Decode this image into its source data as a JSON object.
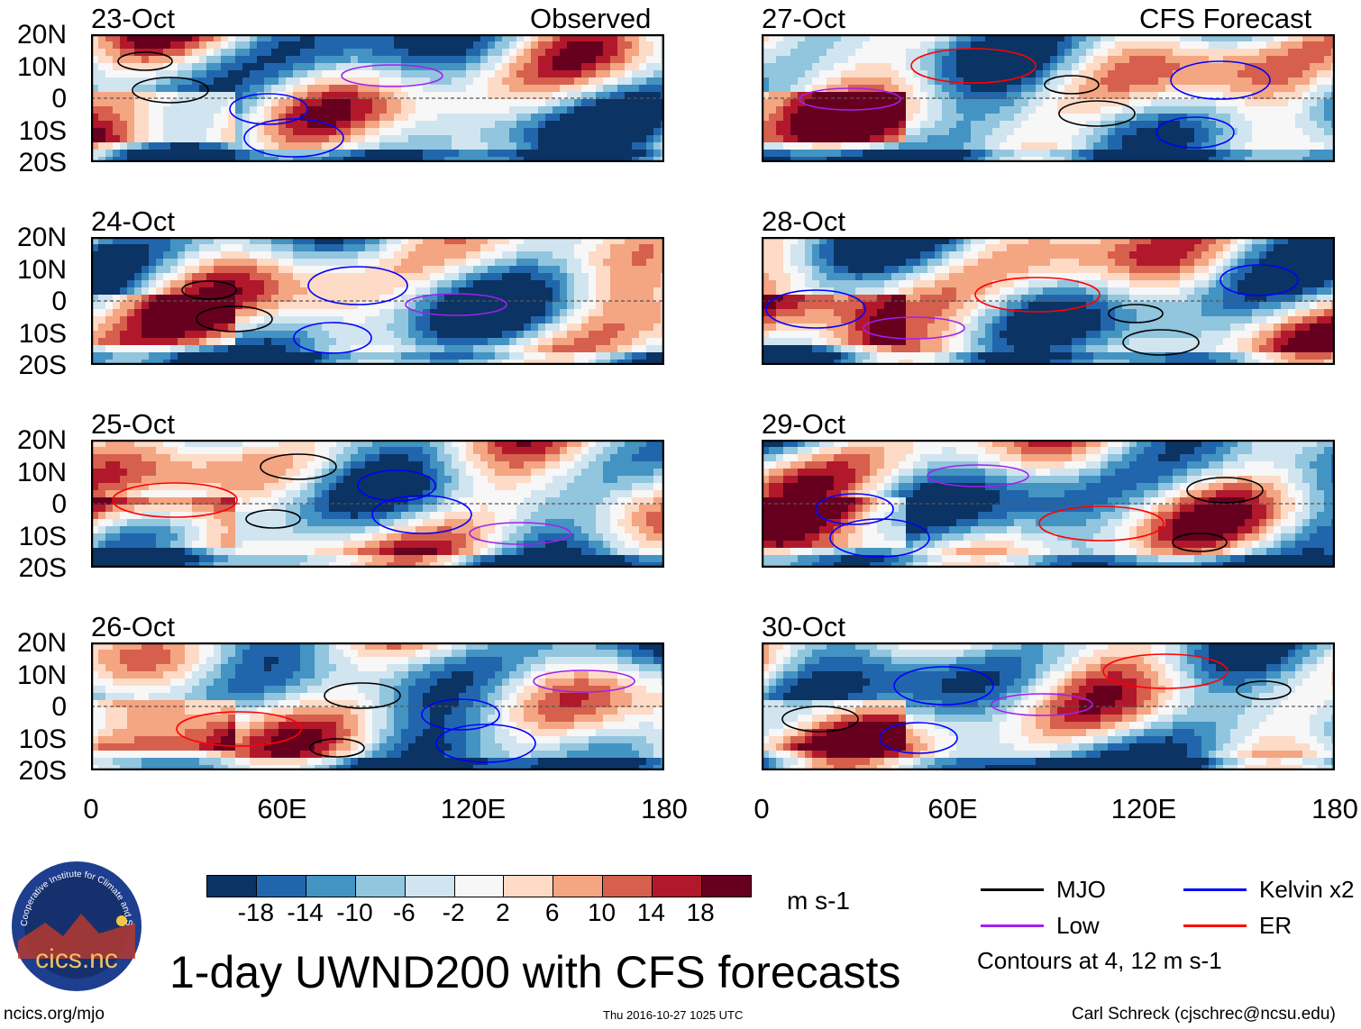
{
  "title": "1-day UWND200 with CFS forecasts",
  "columns": {
    "left_label": "Observed",
    "right_label": "CFS Forecast"
  },
  "footer": {
    "left": "ncics.org/mjo",
    "center": "Thu 2016-10-27 1025 UTC",
    "right": "Carl Schreck (cjschrec@ncsu.edu)"
  },
  "logo": {
    "ring_text": "Cooperative Institute for Climate and Satellites",
    "name": "cics.nc"
  },
  "units": "m s-1",
  "legend": {
    "items": [
      {
        "label": "MJO",
        "color": "#000000"
      },
      {
        "label": "Kelvin x2",
        "color": "#0000ff"
      },
      {
        "label": "Low",
        "color": "#a020f0"
      },
      {
        "label": "ER",
        "color": "#ff0000"
      }
    ],
    "note": "Contours at 4, 12 m s-1"
  },
  "chart_data": {
    "type": "heatmap",
    "variable": "200-hPa zonal wind",
    "lat_ticks": [
      "20N",
      "10N",
      "0",
      "10S",
      "20S"
    ],
    "lon_ticks": [
      "0",
      "60E",
      "120E",
      "180"
    ],
    "lat_range": [
      -20,
      20
    ],
    "lon_range": [
      0,
      180
    ],
    "panels": [
      {
        "date": "23-Oct",
        "column": "Observed"
      },
      {
        "date": "24-Oct",
        "column": "Observed"
      },
      {
        "date": "25-Oct",
        "column": "Observed"
      },
      {
        "date": "26-Oct",
        "column": "Observed"
      },
      {
        "date": "27-Oct",
        "column": "CFS Forecast"
      },
      {
        "date": "28-Oct",
        "column": "CFS Forecast"
      },
      {
        "date": "29-Oct",
        "column": "CFS Forecast"
      },
      {
        "date": "30-Oct",
        "column": "CFS Forecast"
      }
    ],
    "colorbar": {
      "levels": [
        "-18",
        "-14",
        "-10",
        "-6",
        "-2",
        "2",
        "6",
        "10",
        "14",
        "18"
      ],
      "colors": [
        "#0b3364",
        "#2166ac",
        "#4393c3",
        "#92c5de",
        "#d1e5f0",
        "#f7f7f7",
        "#fddbc7",
        "#f4a582",
        "#d6604d",
        "#b2182b",
        "#67001f"
      ]
    }
  }
}
